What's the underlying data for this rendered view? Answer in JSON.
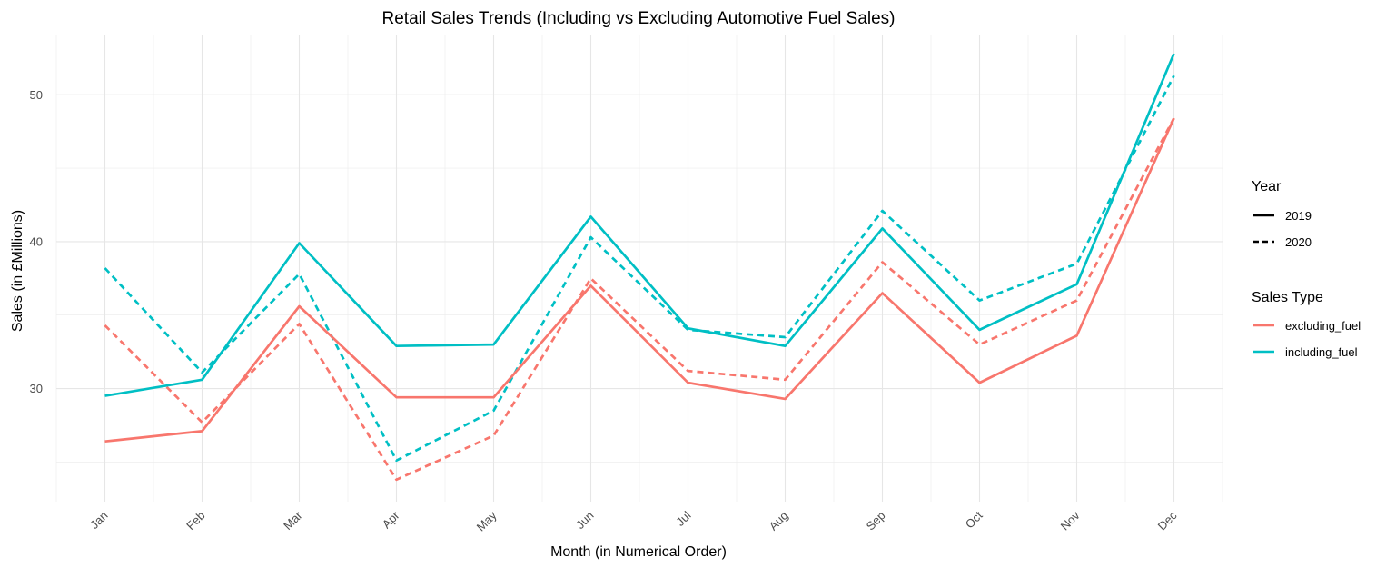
{
  "chart_data": {
    "type": "line",
    "title": "Retail Sales Trends (Including vs Excluding Automotive Fuel Sales)",
    "xlabel": "Month (in Numerical Order)",
    "ylabel": "Sales (in £Millions)",
    "categories": [
      "Jan",
      "Feb",
      "Mar",
      "Apr",
      "May",
      "Jun",
      "Jul",
      "Aug",
      "Sep",
      "Oct",
      "Nov",
      "Dec"
    ],
    "ylim": [
      22.3,
      54.1
    ],
    "yticks": [
      30,
      40,
      50
    ],
    "grid": true,
    "legend_position": "right",
    "legends": [
      {
        "title": "Year",
        "entries": [
          {
            "label": "2019",
            "linestyle": "solid"
          },
          {
            "label": "2020",
            "linestyle": "dashed"
          }
        ]
      },
      {
        "title": "Sales Type",
        "entries": [
          {
            "label": "excluding_fuel",
            "color": "#F8766D"
          },
          {
            "label": "including_fuel",
            "color": "#00BFC4"
          }
        ]
      }
    ],
    "series": [
      {
        "sales_type": "excluding_fuel",
        "year": "2019",
        "color": "#F8766D",
        "linestyle": "solid",
        "values": [
          26.4,
          27.1,
          35.6,
          29.4,
          29.4,
          37.0,
          30.4,
          29.3,
          36.5,
          30.4,
          33.6,
          48.4
        ]
      },
      {
        "sales_type": "excluding_fuel",
        "year": "2020",
        "color": "#F8766D",
        "linestyle": "dashed",
        "values": [
          34.3,
          27.7,
          34.4,
          23.8,
          26.8,
          37.5,
          31.2,
          30.6,
          38.6,
          33.0,
          36.0,
          48.4
        ]
      },
      {
        "sales_type": "including_fuel",
        "year": "2019",
        "color": "#00BFC4",
        "linestyle": "solid",
        "values": [
          29.5,
          30.6,
          39.9,
          32.9,
          33.0,
          41.7,
          34.1,
          32.9,
          40.9,
          34.0,
          37.1,
          52.8
        ]
      },
      {
        "sales_type": "including_fuel",
        "year": "2020",
        "color": "#00BFC4",
        "linestyle": "dashed",
        "values": [
          38.2,
          31.1,
          37.8,
          25.1,
          28.5,
          40.3,
          34.0,
          33.5,
          42.1,
          36.0,
          38.5,
          51.3
        ]
      }
    ]
  }
}
